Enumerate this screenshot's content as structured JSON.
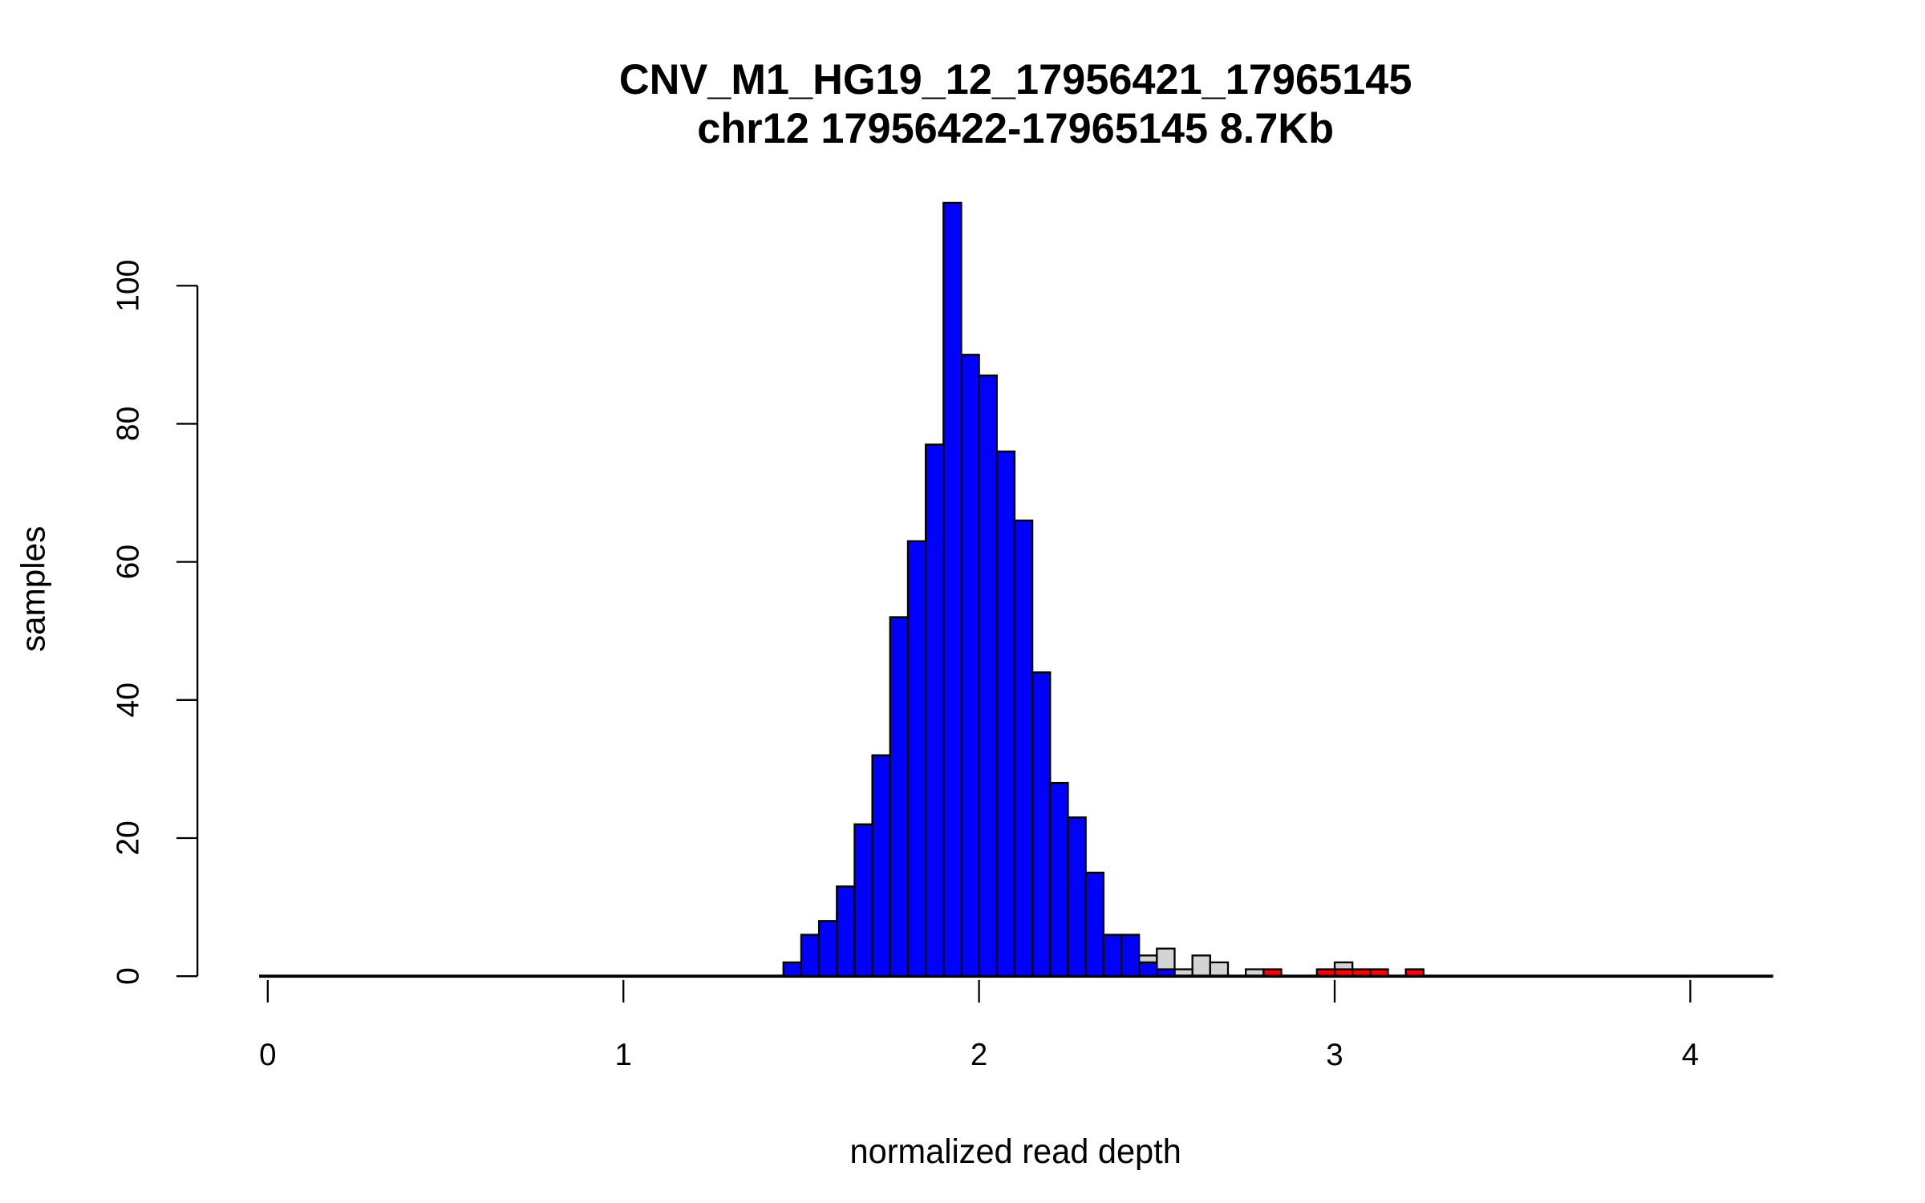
{
  "chart_data": {
    "type": "bar",
    "title": "CNV_M1_HG19_12_17956421_17965145",
    "subtitle": "chr12 17956422-17965145 8.7Kb",
    "xlabel": "normalized read depth",
    "ylabel": "samples",
    "xlim": [
      0,
      4.2
    ],
    "ylim": [
      0,
      112
    ],
    "x_ticks": [
      "0",
      "1",
      "2",
      "3",
      "4"
    ],
    "y_ticks": [
      "0",
      "20",
      "40",
      "60",
      "80",
      "100"
    ],
    "bin_width": 0.05,
    "grid": false,
    "series": [
      {
        "name": "gray",
        "color": "#d3d3d3",
        "bins": [
          [
            2.475,
            3
          ],
          [
            2.525,
            4
          ],
          [
            2.575,
            1
          ],
          [
            2.625,
            3
          ],
          [
            2.675,
            2
          ],
          [
            2.775,
            1
          ],
          [
            3.025,
            2
          ]
        ]
      },
      {
        "name": "blue",
        "color": "#0000ff",
        "bins": [
          [
            1.475,
            2
          ],
          [
            1.525,
            6
          ],
          [
            1.575,
            8
          ],
          [
            1.625,
            13
          ],
          [
            1.675,
            22
          ],
          [
            1.725,
            32
          ],
          [
            1.775,
            52
          ],
          [
            1.825,
            63
          ],
          [
            1.875,
            77
          ],
          [
            1.925,
            112
          ],
          [
            1.975,
            90
          ],
          [
            2.025,
            87
          ],
          [
            2.075,
            76
          ],
          [
            2.125,
            66
          ],
          [
            2.175,
            44
          ],
          [
            2.225,
            28
          ],
          [
            2.275,
            23
          ],
          [
            2.325,
            15
          ],
          [
            2.375,
            6
          ],
          [
            2.425,
            6
          ],
          [
            2.475,
            2
          ],
          [
            2.525,
            1
          ]
        ]
      },
      {
        "name": "red",
        "color": "#ff0000",
        "bins": [
          [
            2.825,
            1
          ],
          [
            2.975,
            1
          ],
          [
            3.025,
            1
          ],
          [
            3.075,
            1
          ],
          [
            3.125,
            1
          ],
          [
            3.225,
            1
          ]
        ]
      }
    ]
  }
}
